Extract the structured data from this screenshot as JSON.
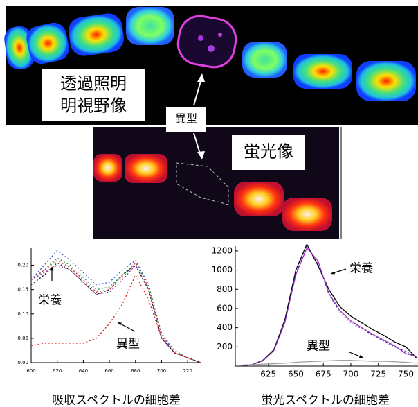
{
  "images": {
    "brightfield_label": [
      "透過照明",
      "明視野像"
    ],
    "heterocyst_label": "異型",
    "fluorescence_label": "蛍光像"
  },
  "chart_data": [
    {
      "type": "line",
      "caption": "吸収スペクトルの細胞差",
      "x": [
        600,
        610,
        620,
        630,
        640,
        650,
        660,
        670,
        680,
        690,
        700,
        710,
        720,
        730
      ],
      "xlim": [
        600,
        730
      ],
      "ylim": [
        0,
        0.235
      ],
      "xticks": [
        600,
        620,
        640,
        660,
        680,
        700,
        720
      ],
      "yticks": [
        {
          "value": 0,
          "label": "0.00"
        },
        {
          "value": 0.05,
          "label": "0.05"
        },
        {
          "value": 0.1,
          "label": "0.10"
        },
        {
          "value": 0.15,
          "label": "0.15"
        },
        {
          "value": 0.2,
          "label": "0.20"
        }
      ],
      "annotations": [
        "栄養",
        "異型"
      ],
      "series": [
        {
          "color": "#3050d0",
          "dash": "dotted",
          "values": [
            0.17,
            0.2,
            0.23,
            0.21,
            0.185,
            0.16,
            0.165,
            0.19,
            0.21,
            0.16,
            0.06,
            0.02,
            0.01,
            0
          ]
        },
        {
          "color": "#20a040",
          "dash": "dotted",
          "values": [
            0.17,
            0.19,
            0.215,
            0.2,
            0.175,
            0.15,
            0.155,
            0.18,
            0.205,
            0.16,
            0.06,
            0.025,
            0.01,
            0
          ]
        },
        {
          "color": "#d03030",
          "dash": "dotted",
          "values": [
            0.17,
            0.19,
            0.21,
            0.195,
            0.17,
            0.145,
            0.15,
            0.175,
            0.205,
            0.155,
            0.055,
            0.02,
            0.01,
            0
          ]
        },
        {
          "color": "#9030a0",
          "dash": "dotted",
          "values": [
            0.17,
            0.185,
            0.2,
            0.19,
            0.165,
            0.14,
            0.145,
            0.17,
            0.2,
            0.15,
            0.05,
            0.02,
            0.01,
            0
          ]
        },
        {
          "color": "#202020",
          "dash": "dotted",
          "values": [
            0.16,
            0.18,
            0.205,
            0.19,
            0.165,
            0.14,
            0.15,
            0.18,
            0.2,
            0.15,
            0.05,
            0.02,
            0.01,
            0
          ]
        },
        {
          "color": "#e02020",
          "dash": "dotted",
          "values": [
            0.035,
            0.04,
            0.04,
            0.04,
            0.04,
            0.05,
            0.08,
            0.12,
            0.18,
            0.13,
            0.05,
            0.02,
            0.01,
            0
          ]
        }
      ]
    },
    {
      "type": "line",
      "caption": "蛍光スペクトルの細胞差",
      "x": [
        600,
        610,
        620,
        630,
        640,
        650,
        660,
        670,
        680,
        690,
        700,
        710,
        720,
        730,
        740,
        750,
        760
      ],
      "xlim": [
        595,
        761
      ],
      "ylim": [
        0,
        1250
      ],
      "xticks": [
        625,
        650,
        675,
        700,
        725,
        750
      ],
      "yticks": [
        200,
        400,
        600,
        800,
        1000,
        1200
      ],
      "annotations": [
        "栄養",
        "異型"
      ],
      "series": [
        {
          "color": "#000000",
          "dash": "solid",
          "values": [
            5,
            15,
            60,
            170,
            480,
            1000,
            1270,
            1050,
            800,
            620,
            520,
            450,
            380,
            320,
            250,
            200,
            80
          ]
        },
        {
          "color": "#b030c0",
          "dash": "solid",
          "values": [
            5,
            15,
            55,
            160,
            450,
            950,
            1230,
            1100,
            760,
            580,
            470,
            400,
            330,
            270,
            210,
            130,
            100
          ]
        },
        {
          "color": "#3040a0",
          "dash": "dotted",
          "values": [
            5,
            15,
            55,
            165,
            460,
            970,
            1250,
            1080,
            750,
            560,
            450,
            390,
            320,
            260,
            200,
            150,
            90
          ]
        },
        {
          "color": "#a0a0a0",
          "dash": "solid",
          "values": [
            10,
            15,
            20,
            25,
            30,
            40,
            45,
            50,
            55,
            60,
            60,
            55,
            50,
            50,
            45,
            40,
            30
          ]
        }
      ]
    }
  ]
}
